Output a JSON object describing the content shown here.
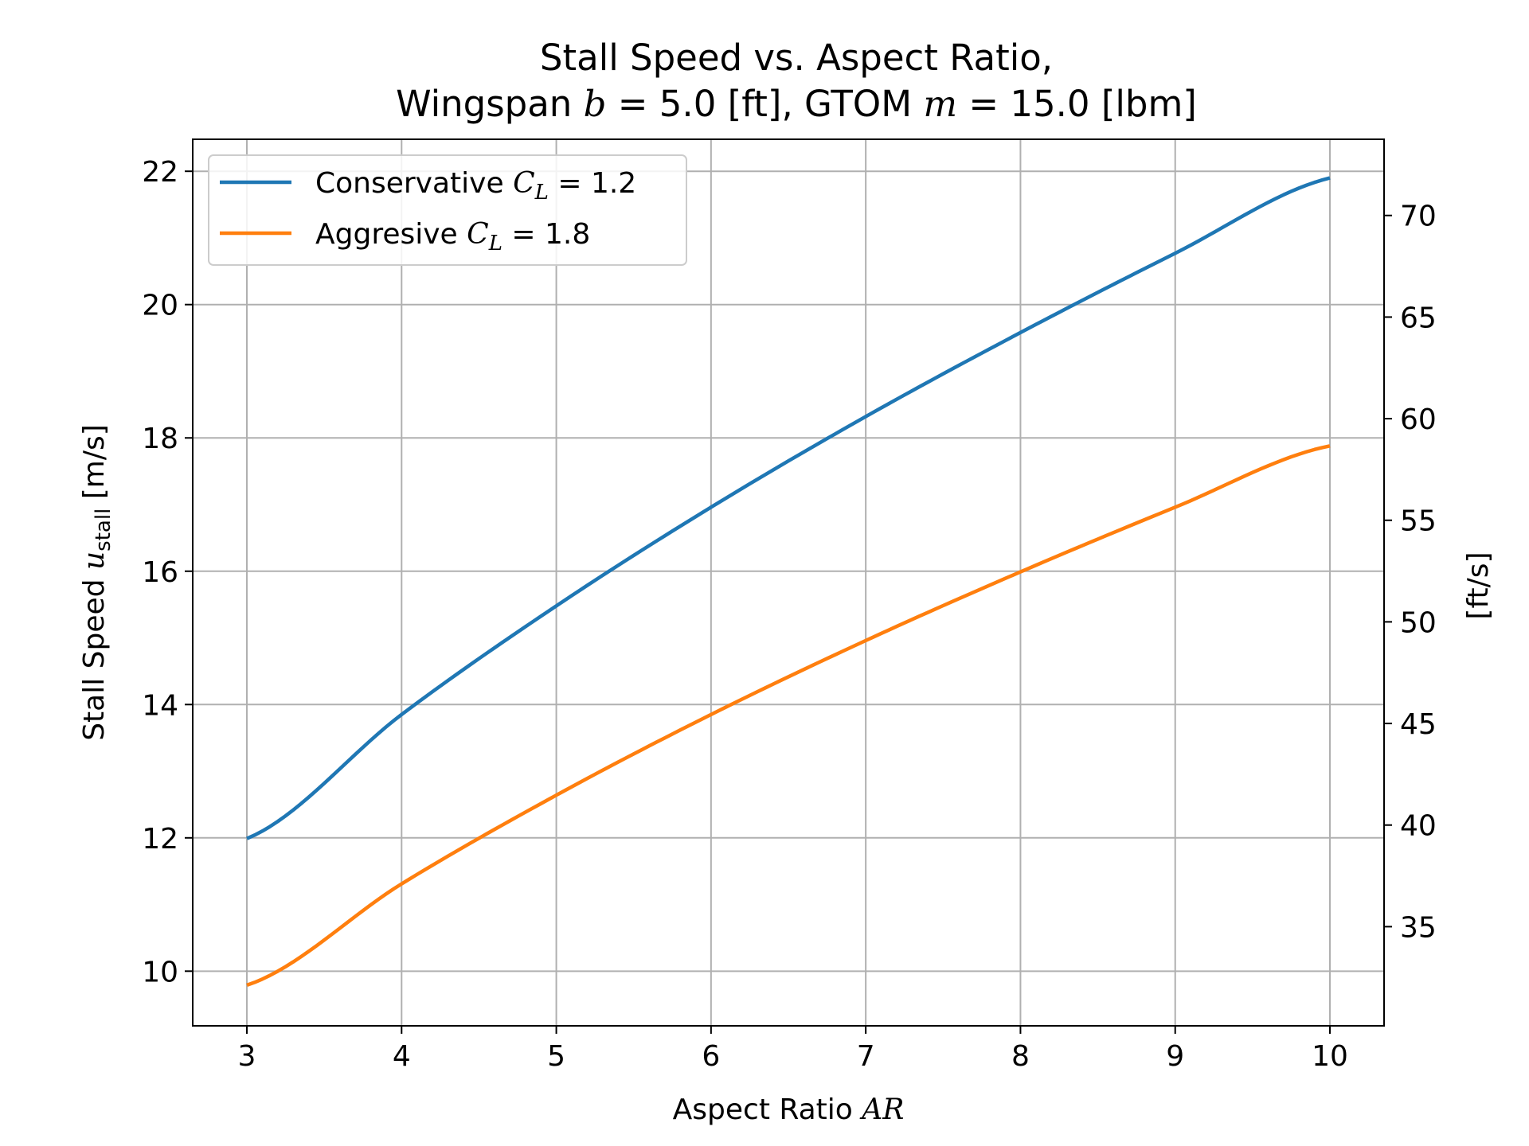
{
  "chart_data": {
    "type": "line",
    "title_line1": "Stall Speed vs. Aspect Ratio,",
    "title_line2": {
      "prefix": "Wingspan ",
      "b_symbol": "b",
      "b_value": " = 5.0 [ft], GTOM ",
      "m_symbol": "m",
      "m_value": " = 15.0 [lbm]"
    },
    "xlabel": {
      "text": "Aspect Ratio ",
      "math": "AR"
    },
    "ylabel": {
      "text": "Stall Speed ",
      "math": "u",
      "subscript": "stall",
      "unit": " [m/s]"
    },
    "ylabel_right": "[ft/s]",
    "xlim": [
      2.65,
      10.35
    ],
    "ylim": [
      9.18,
      22.48
    ],
    "ylim_right_ftps": [
      30.12,
      73.75
    ],
    "xticks": [
      3,
      4,
      5,
      6,
      7,
      8,
      9,
      10
    ],
    "yticks": [
      10,
      12,
      14,
      16,
      18,
      20,
      22
    ],
    "yticks_right": [
      35,
      40,
      45,
      50,
      55,
      60,
      65,
      70
    ],
    "grid": true,
    "legend_position": "upper-left",
    "series": [
      {
        "name": "Conservative",
        "cl_symbol": "C",
        "cl_sub": "L",
        "cl_value": " = 1.2",
        "color": "#1f77b4",
        "x": [
          3,
          4,
          5,
          6,
          7,
          8,
          9,
          10
        ],
        "values": [
          11.99,
          13.85,
          15.48,
          16.96,
          18.32,
          19.58,
          20.77,
          21.9
        ]
      },
      {
        "name": "Aggresive",
        "cl_symbol": "C",
        "cl_sub": "L",
        "cl_value": " = 1.8",
        "color": "#ff7f0e",
        "x": [
          3,
          4,
          5,
          6,
          7,
          8,
          9,
          10
        ],
        "values": [
          9.79,
          11.31,
          12.64,
          13.85,
          14.96,
          15.99,
          16.96,
          17.88
        ]
      }
    ]
  }
}
